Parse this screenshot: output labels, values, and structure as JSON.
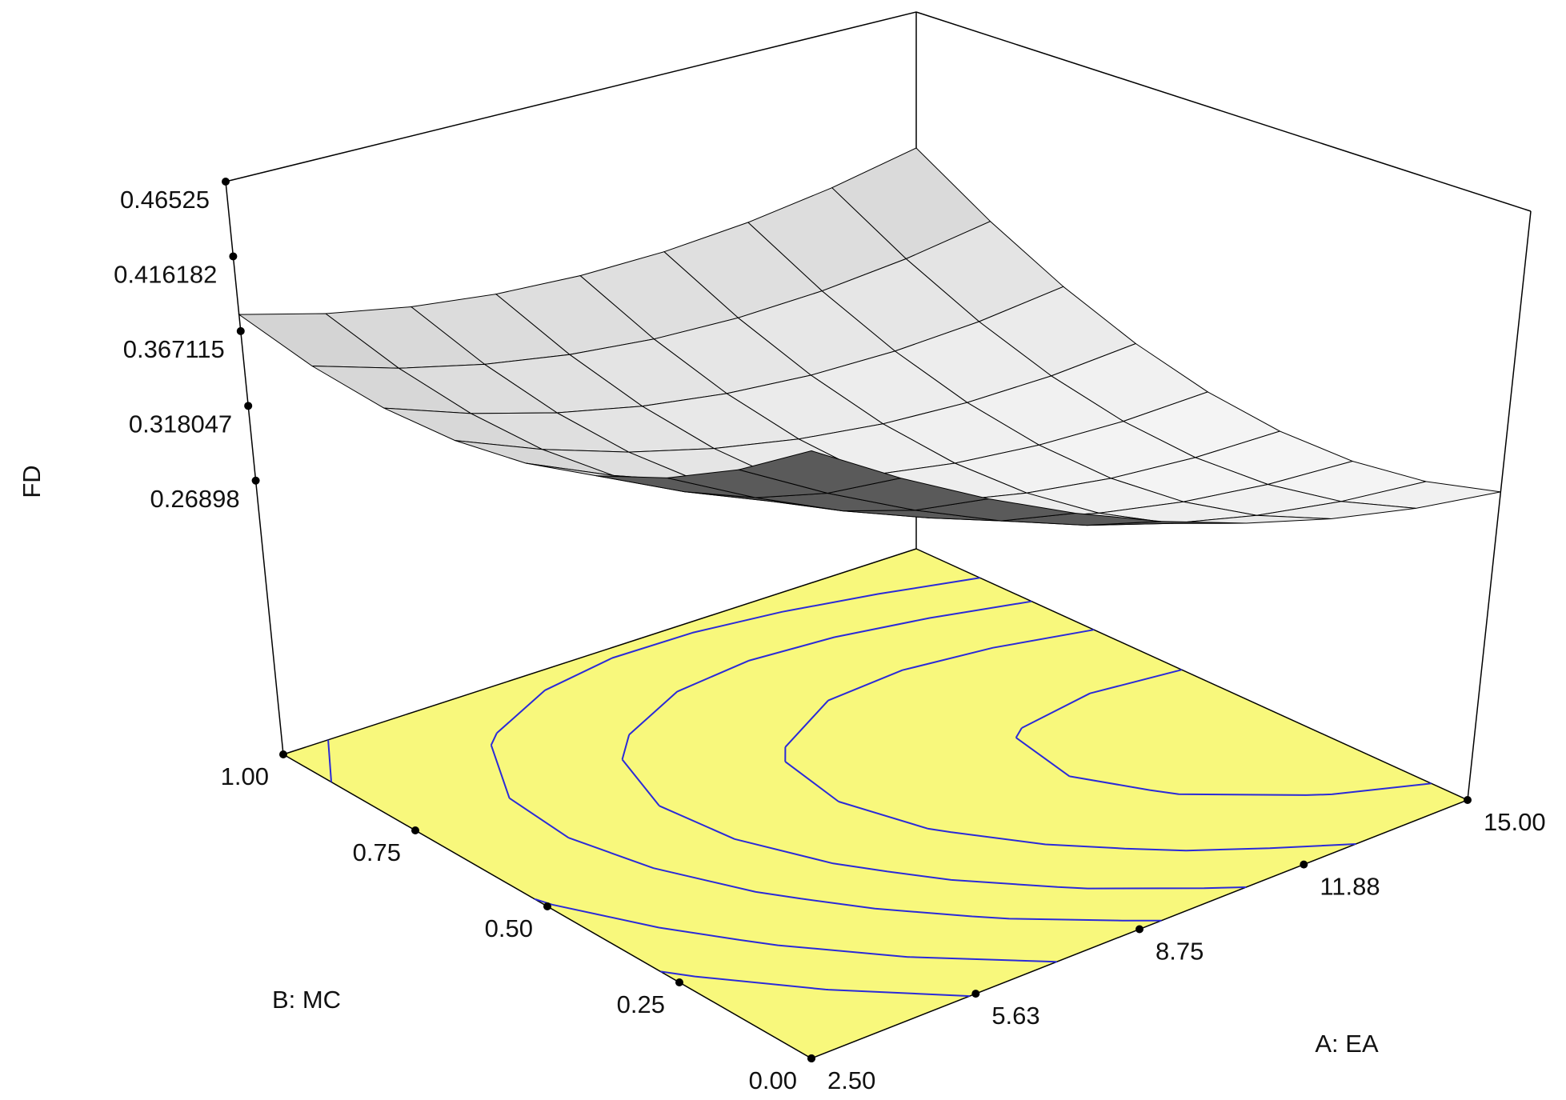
{
  "chart_data": {
    "type": "surface3d",
    "zlabel": "FD",
    "xlabel": "A: EA",
    "ylabel": "B: MC",
    "xlim": [
      2.5,
      15
    ],
    "ylim": [
      0,
      1
    ],
    "zlim": [
      0.26898,
      0.46525
    ],
    "xticks": [
      {
        "value": 2.5,
        "label": "2.50"
      },
      5.63,
      8.75,
      11.88,
      {
        "value": 15,
        "label": "15.00"
      }
    ],
    "yticks": [
      {
        "value": 0,
        "label": "0.00"
      },
      0.25,
      {
        "value": 0.5,
        "label": "0.50"
      },
      0.75,
      {
        "value": 1,
        "label": "1.00"
      }
    ],
    "zticks": [
      0.26898,
      0.318047,
      0.367115,
      0.416182,
      0.46525
    ],
    "x": [
      2.5,
      4.0625,
      5.625,
      7.1875,
      8.75,
      10.3125,
      11.875,
      13.4375,
      15
    ],
    "y": [
      0,
      0.125,
      0.25,
      0.375,
      0.5,
      0.625,
      0.75,
      0.875,
      1
    ],
    "z": [
      [
        0.465,
        0.4295,
        0.3978,
        0.3698,
        0.3455,
        0.325,
        0.3083,
        0.2953,
        0.286
      ],
      [
        0.4323,
        0.3994,
        0.3703,
        0.345,
        0.3234,
        0.3056,
        0.2915,
        0.2812,
        0.2746
      ],
      [
        0.4058,
        0.3756,
        0.3492,
        0.3265,
        0.3076,
        0.2925,
        0.2811,
        0.2734,
        0.2695
      ],
      [
        0.3855,
        0.358,
        0.3343,
        0.3143,
        0.2981,
        0.2856,
        0.2768,
        0.2719,
        0.2706
      ],
      [
        0.3715,
        0.3467,
        0.3256,
        0.3083,
        0.2948,
        0.2849,
        0.2789,
        0.2766,
        0.278
      ],
      [
        0.3638,
        0.3416,
        0.3232,
        0.3086,
        0.2977,
        0.2905,
        0.2872,
        0.2875,
        0.2916
      ],
      [
        0.3623,
        0.3428,
        0.3271,
        0.3151,
        0.3069,
        0.3024,
        0.3017,
        0.3047,
        0.3115
      ],
      [
        0.367,
        0.3502,
        0.3372,
        0.3279,
        0.3223,
        0.3205,
        0.3225,
        0.3282,
        0.3376
      ],
      [
        0.378,
        0.3639,
        0.3535,
        0.3469,
        0.344,
        0.3449,
        0.3495,
        0.3579,
        0.37
      ]
    ],
    "contour_levels": [
      0.28,
      0.3,
      0.32,
      0.34,
      0.37,
      0.4
    ],
    "floor_color": "#f8f87c",
    "contour_color": "#2a2ad8",
    "surface_color": "#f2f2f2"
  }
}
